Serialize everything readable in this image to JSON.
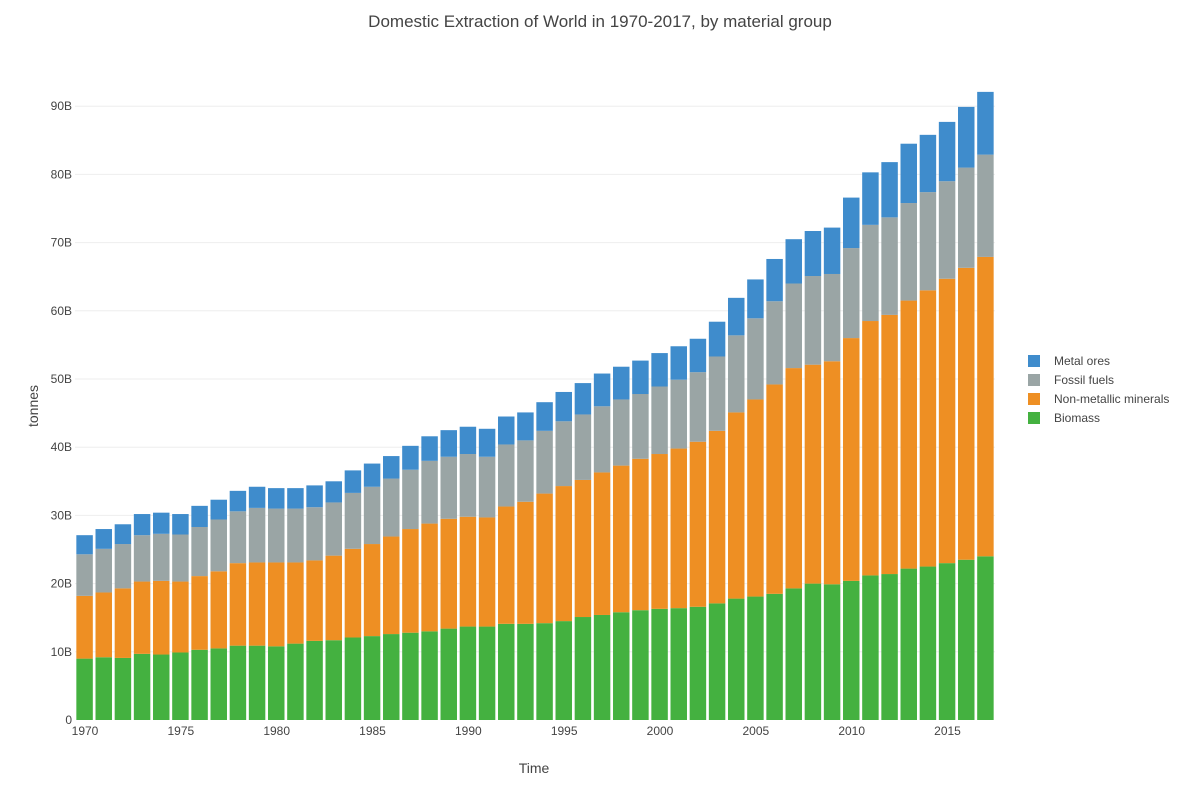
{
  "chart_data": {
    "type": "bar",
    "stacked": true,
    "title": "Domestic Extraction of World in 1970-2017, by material group",
    "xlabel": "Time",
    "ylabel": "tonnes",
    "x": [
      1970,
      1971,
      1972,
      1973,
      1974,
      1975,
      1976,
      1977,
      1978,
      1979,
      1980,
      1981,
      1982,
      1983,
      1984,
      1985,
      1986,
      1987,
      1988,
      1989,
      1990,
      1991,
      1992,
      1993,
      1994,
      1995,
      1996,
      1997,
      1998,
      1999,
      2000,
      2001,
      2002,
      2003,
      2004,
      2005,
      2006,
      2007,
      2008,
      2009,
      2010,
      2011,
      2012,
      2013,
      2014,
      2015,
      2016,
      2017
    ],
    "x_tick_values": [
      1970,
      1975,
      1980,
      1985,
      1990,
      1995,
      2000,
      2005,
      2010,
      2015
    ],
    "x_tick_labels": [
      "1970",
      "1975",
      "1980",
      "1985",
      "1990",
      "1995",
      "2000",
      "2005",
      "2010",
      "2015"
    ],
    "y_tick_values": [
      0,
      10,
      20,
      30,
      40,
      50,
      60,
      70,
      80,
      90
    ],
    "y_tick_labels": [
      "0",
      "10B",
      "20B",
      "30B",
      "40B",
      "50B",
      "60B",
      "70B",
      "80B",
      "90B"
    ],
    "ylim": [
      0,
      95
    ],
    "y_units": "billion tonnes",
    "grid": true,
    "legend_position": "right",
    "series": [
      {
        "name": "Biomass",
        "color": "#44b140",
        "values": [
          9.0,
          9.2,
          9.1,
          9.7,
          9.6,
          9.9,
          10.3,
          10.5,
          10.9,
          10.9,
          10.8,
          11.2,
          11.6,
          11.7,
          12.1,
          12.3,
          12.6,
          12.8,
          13.0,
          13.4,
          13.7,
          13.7,
          14.1,
          14.1,
          14.2,
          14.5,
          15.1,
          15.4,
          15.8,
          16.1,
          16.3,
          16.4,
          16.6,
          17.1,
          17.8,
          18.1,
          18.5,
          19.3,
          20.0,
          19.9,
          20.4,
          21.2,
          21.4,
          22.2,
          22.5,
          23.0,
          23.5,
          24.0
        ]
      },
      {
        "name": "Non-metallic minerals",
        "color": "#ee8f23",
        "values": [
          9.2,
          9.5,
          10.2,
          10.6,
          10.8,
          10.4,
          10.8,
          11.3,
          12.1,
          12.2,
          12.3,
          11.9,
          11.8,
          12.4,
          13.0,
          13.5,
          14.3,
          15.2,
          15.8,
          16.1,
          16.1,
          16.0,
          17.2,
          17.9,
          19.0,
          19.8,
          20.1,
          20.9,
          21.5,
          22.2,
          22.7,
          23.4,
          24.2,
          25.3,
          27.3,
          28.9,
          30.7,
          32.3,
          32.1,
          32.7,
          35.6,
          37.3,
          38.0,
          39.3,
          40.5,
          41.7,
          42.8,
          43.9
        ]
      },
      {
        "name": "Fossil fuels",
        "color": "#9aa5a5",
        "values": [
          6.1,
          6.4,
          6.5,
          6.8,
          6.9,
          6.9,
          7.2,
          7.6,
          7.6,
          8.0,
          7.9,
          7.9,
          7.8,
          7.8,
          8.2,
          8.4,
          8.5,
          8.7,
          9.2,
          9.1,
          9.2,
          8.9,
          9.1,
          9.0,
          9.2,
          9.5,
          9.6,
          9.7,
          9.7,
          9.5,
          9.9,
          10.1,
          10.2,
          10.9,
          11.3,
          11.9,
          12.2,
          12.4,
          13.0,
          12.8,
          13.2,
          14.1,
          14.3,
          14.3,
          14.4,
          14.3,
          14.7,
          15.0
        ]
      },
      {
        "name": "Metal ores",
        "color": "#3f8ccc",
        "values": [
          2.8,
          2.9,
          2.9,
          3.1,
          3.1,
          3.0,
          3.1,
          2.9,
          3.0,
          3.1,
          3.0,
          3.0,
          3.2,
          3.1,
          3.3,
          3.4,
          3.3,
          3.5,
          3.6,
          3.9,
          4.0,
          4.1,
          4.1,
          4.1,
          4.2,
          4.3,
          4.6,
          4.8,
          4.8,
          4.9,
          4.9,
          4.9,
          4.9,
          5.1,
          5.5,
          5.7,
          6.2,
          6.5,
          6.6,
          6.8,
          7.4,
          7.7,
          8.1,
          8.7,
          8.4,
          8.7,
          8.9,
          9.2
        ]
      }
    ],
    "legend_order": [
      "Metal ores",
      "Fossil fuels",
      "Non-metallic minerals",
      "Biomass"
    ]
  }
}
